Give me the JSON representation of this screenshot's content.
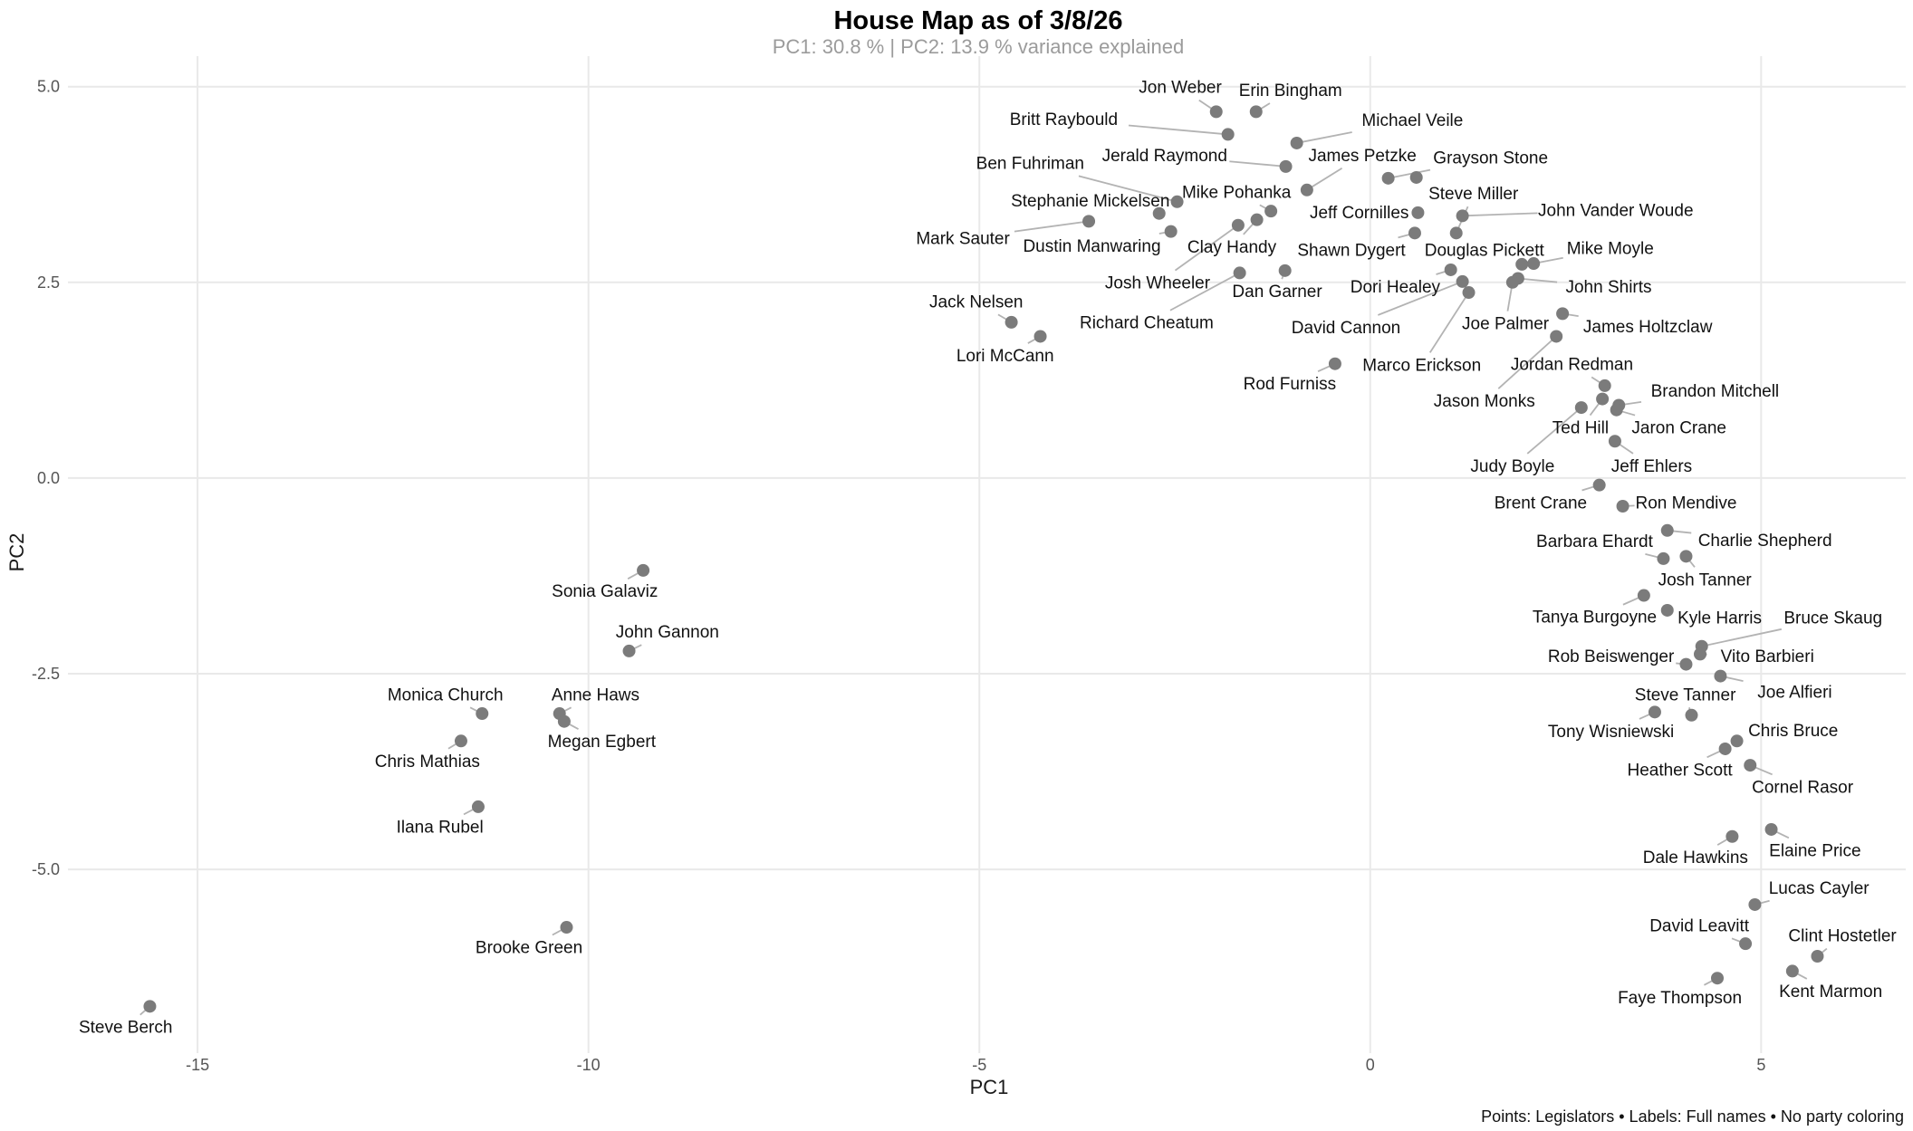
{
  "chart_data": {
    "type": "scatter",
    "title": "House Map as of 3/8/26",
    "subtitle": "PC1: 30.8 % | PC2: 13.9 % variance explained",
    "caption": "Points: Legislators • Labels: Full names • No party coloring",
    "xlabel": "PC1",
    "ylabel": "PC2",
    "x_ticks": [
      -15,
      -10,
      -5,
      0,
      5
    ],
    "x_tick_labels": [
      "-15",
      "-10",
      "-5",
      "0",
      "5"
    ],
    "y_ticks": [
      5.0,
      2.5,
      0.0,
      -2.5,
      -5.0
    ],
    "y_tick_labels": [
      "5.0",
      "2.5",
      "0.0",
      "-2.5",
      "-5.0"
    ],
    "xlim": [
      -16.6,
      6.85
    ],
    "ylim": [
      -7.29,
      5.39
    ],
    "grid": true,
    "legend": false,
    "points": [
      {
        "name": "Jon Weber",
        "x": -1.97,
        "y": 4.68,
        "lx": -2.43,
        "ly": 4.99
      },
      {
        "name": "Erin Bingham",
        "x": -1.46,
        "y": 4.68,
        "lx": -1.02,
        "ly": 4.95
      },
      {
        "name": "Britt Raybould",
        "x": -1.82,
        "y": 4.39,
        "lx": -3.92,
        "ly": 4.58
      },
      {
        "name": "Michael Veile",
        "x": -0.94,
        "y": 4.28,
        "lx": 0.54,
        "ly": 4.57
      },
      {
        "name": "Jerald Raymond",
        "x": -1.08,
        "y": 3.98,
        "lx": -2.63,
        "ly": 4.12
      },
      {
        "name": "James Petzke",
        "x": -0.81,
        "y": 3.68,
        "lx": -0.1,
        "ly": 4.12
      },
      {
        "name": "Grayson Stone",
        "x": 0.23,
        "y": 3.83,
        "lx": 1.54,
        "ly": 4.09
      },
      {
        "name": "Ben Fuhriman",
        "x": -2.47,
        "y": 3.53,
        "lx": -4.35,
        "ly": 4.02
      },
      {
        "name": "Mike Pohanka",
        "x": -1.27,
        "y": 3.41,
        "lx": -1.71,
        "ly": 3.65
      },
      {
        "name": "Stephanie Mickelsen",
        "x": -2.7,
        "y": 3.38,
        "lx": -3.58,
        "ly": 3.54
      },
      {
        "name": "Steve Miller",
        "x": 1.1,
        "y": 3.13,
        "lx": 1.32,
        "ly": 3.63
      },
      {
        "name": "Mark Sauter",
        "x": -3.6,
        "y": 3.28,
        "lx": -5.21,
        "ly": 3.06
      },
      {
        "name": "Dustin Manwaring",
        "x": -2.55,
        "y": 3.15,
        "lx": -3.56,
        "ly": 2.96
      },
      {
        "name": "Clay Handy",
        "x": -1.45,
        "y": 3.3,
        "lx": -1.77,
        "ly": 2.95
      },
      {
        "name": "Jeff Cornilles",
        "x": 0.61,
        "y": 3.39,
        "lx": -0.14,
        "ly": 3.39
      },
      {
        "name": "John Vander Woude",
        "x": 1.18,
        "y": 3.35,
        "lx": 3.14,
        "ly": 3.42
      },
      {
        "name": "Shawn Dygert",
        "x": 0.57,
        "y": 3.13,
        "lx": -0.24,
        "ly": 2.91
      },
      {
        "name": "Douglas Pickett",
        "x": 1.94,
        "y": 2.73,
        "lx": 1.46,
        "ly": 2.91
      },
      {
        "name": "Mike Moyle",
        "x": 2.09,
        "y": 2.74,
        "lx": 3.07,
        "ly": 2.93
      },
      {
        "name": "Josh Wheeler",
        "x": -1.69,
        "y": 3.23,
        "lx": -2.72,
        "ly": 2.49
      },
      {
        "name": "Dan Garner",
        "x": -1.09,
        "y": 2.65,
        "lx": -1.19,
        "ly": 2.38
      },
      {
        "name": "Dori Healey",
        "x": 1.03,
        "y": 2.66,
        "lx": 0.32,
        "ly": 2.44
      },
      {
        "name": "John Shirts",
        "x": 1.89,
        "y": 2.55,
        "lx": 3.05,
        "ly": 2.44
      },
      {
        "name": "Jack Nelsen",
        "x": -4.59,
        "y": 1.99,
        "lx": -5.04,
        "ly": 2.25
      },
      {
        "name": "Richard Cheatum",
        "x": -1.67,
        "y": 2.62,
        "lx": -2.86,
        "ly": 1.98
      },
      {
        "name": "David Cannon",
        "x": 1.18,
        "y": 2.51,
        "lx": -0.31,
        "ly": 1.92
      },
      {
        "name": "Joe Palmer",
        "x": 1.82,
        "y": 2.5,
        "lx": 1.73,
        "ly": 1.97
      },
      {
        "name": "James Holtzclaw",
        "x": 2.46,
        "y": 2.1,
        "lx": 3.55,
        "ly": 1.93
      },
      {
        "name": "Lori McCann",
        "x": -4.22,
        "y": 1.81,
        "lx": -4.67,
        "ly": 1.56
      },
      {
        "name": "Marco Erickson",
        "x": 1.26,
        "y": 2.37,
        "lx": 0.66,
        "ly": 1.44
      },
      {
        "name": "Jordan Redman",
        "x": 3.0,
        "y": 1.18,
        "lx": 2.58,
        "ly": 1.45
      },
      {
        "name": "Rod Furniss",
        "x": -0.45,
        "y": 1.46,
        "lx": -1.03,
        "ly": 1.2
      },
      {
        "name": "Jason Monks",
        "x": 2.38,
        "y": 1.81,
        "lx": 1.46,
        "ly": 0.98
      },
      {
        "name": "Brandon Mitchell",
        "x": 3.18,
        "y": 0.93,
        "lx": 4.41,
        "ly": 1.11
      },
      {
        "name": "Ted Hill",
        "x": 2.97,
        "y": 1.01,
        "lx": 2.69,
        "ly": 0.64
      },
      {
        "name": "Jaron Crane",
        "x": 3.15,
        "y": 0.87,
        "lx": 3.95,
        "ly": 0.64
      },
      {
        "name": "Judy Boyle",
        "x": 2.7,
        "y": 0.9,
        "lx": 1.82,
        "ly": 0.15
      },
      {
        "name": "Jeff Ehlers",
        "x": 3.13,
        "y": 0.47,
        "lx": 3.6,
        "ly": 0.15
      },
      {
        "name": "Brent Crane",
        "x": 2.93,
        "y": -0.09,
        "lx": 2.18,
        "ly": -0.32
      },
      {
        "name": "Ron Mendive",
        "x": 3.23,
        "y": -0.36,
        "lx": 4.04,
        "ly": -0.32
      },
      {
        "name": "Barbara Ehardt",
        "x": 3.75,
        "y": -1.03,
        "lx": 2.87,
        "ly": -0.81
      },
      {
        "name": "Charlie Shepherd",
        "x": 3.8,
        "y": -0.67,
        "lx": 5.05,
        "ly": -0.8
      },
      {
        "name": "Josh Tanner",
        "x": 4.04,
        "y": -1.0,
        "lx": 4.28,
        "ly": -1.3
      },
      {
        "name": "Tanya Burgoyne",
        "x": 3.5,
        "y": -1.5,
        "lx": 2.87,
        "ly": -1.78
      },
      {
        "name": "Kyle Harris",
        "x": 3.8,
        "y": -1.69,
        "lx": 4.47,
        "ly": -1.79
      },
      {
        "name": "Bruce Skaug",
        "x": 4.24,
        "y": -2.15,
        "lx": 5.92,
        "ly": -1.79
      },
      {
        "name": "Rob Beiswenger",
        "x": 4.04,
        "y": -2.38,
        "lx": 3.08,
        "ly": -2.28
      },
      {
        "name": "Vito Barbieri",
        "x": 4.22,
        "y": -2.25,
        "lx": 5.08,
        "ly": -2.28
      },
      {
        "name": "Steve Tanner",
        "x": 4.11,
        "y": -3.03,
        "lx": 4.03,
        "ly": -2.77
      },
      {
        "name": "Joe Alfieri",
        "x": 4.48,
        "y": -2.53,
        "lx": 5.43,
        "ly": -2.74
      },
      {
        "name": "Tony Wisniewski",
        "x": 3.64,
        "y": -2.99,
        "lx": 3.08,
        "ly": -3.24
      },
      {
        "name": "Chris Bruce",
        "x": 4.69,
        "y": -3.36,
        "lx": 5.41,
        "ly": -3.23
      },
      {
        "name": "Heather Scott",
        "x": 4.54,
        "y": -3.46,
        "lx": 3.96,
        "ly": -3.73
      },
      {
        "name": "Cornel Rasor",
        "x": 4.86,
        "y": -3.67,
        "lx": 5.53,
        "ly": -3.95
      },
      {
        "name": "Dale Hawkins",
        "x": 4.63,
        "y": -4.58,
        "lx": 4.16,
        "ly": -4.85
      },
      {
        "name": "Elaine Price",
        "x": 5.13,
        "y": -4.49,
        "lx": 5.69,
        "ly": -4.76
      },
      {
        "name": "Lucas Cayler",
        "x": 4.92,
        "y": -5.45,
        "lx": 5.74,
        "ly": -5.24
      },
      {
        "name": "David Leavitt",
        "x": 4.8,
        "y": -5.95,
        "lx": 4.21,
        "ly": -5.72
      },
      {
        "name": "Clint Hostetler",
        "x": 5.72,
        "y": -6.11,
        "lx": 6.04,
        "ly": -5.85
      },
      {
        "name": "Faye Thompson",
        "x": 4.44,
        "y": -6.39,
        "lx": 3.96,
        "ly": -6.64
      },
      {
        "name": "Kent Marmon",
        "x": 5.4,
        "y": -6.3,
        "lx": 5.89,
        "ly": -6.56
      },
      {
        "name": "Sonia Galaviz",
        "x": -9.3,
        "y": -1.18,
        "lx": -9.79,
        "ly": -1.45
      },
      {
        "name": "John Gannon",
        "x": -9.48,
        "y": -2.21,
        "lx": -8.99,
        "ly": -1.97
      },
      {
        "name": "Monica Church",
        "x": -11.36,
        "y": -3.01,
        "lx": -11.83,
        "ly": -2.77
      },
      {
        "name": "Anne Haws",
        "x": -10.37,
        "y": -3.01,
        "lx": -9.91,
        "ly": -2.77
      },
      {
        "name": "Megan Egbert",
        "x": -10.31,
        "y": -3.11,
        "lx": -9.83,
        "ly": -3.37
      },
      {
        "name": "Chris Mathias",
        "x": -11.63,
        "y": -3.36,
        "lx": -12.06,
        "ly": -3.62
      },
      {
        "name": "Ilana Rubel",
        "x": -11.41,
        "y": -4.2,
        "lx": -11.9,
        "ly": -4.46
      },
      {
        "name": "Brooke Green",
        "x": -10.28,
        "y": -5.74,
        "lx": -10.76,
        "ly": -6.0
      },
      {
        "name": "Steve Berch",
        "x": -15.61,
        "y": -6.75,
        "lx": -15.92,
        "ly": -7.02
      }
    ],
    "extra_points": [
      {
        "x": 0.59,
        "y": 3.84
      }
    ]
  },
  "colors": {
    "point": "#7b7b7b",
    "segment": "#b3b3b3",
    "grid": "#e9e9e9",
    "label_text": "#111111",
    "subtitle_text": "#9b9b9b",
    "tick_text": "#555555",
    "background": "#ffffff"
  }
}
